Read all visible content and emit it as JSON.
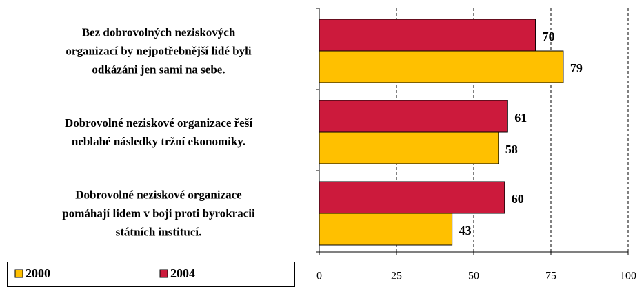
{
  "chart_data": {
    "type": "bar",
    "orientation": "horizontal",
    "categories": [
      "Bez dobrovolných neziskových\norganizací by nejpotřebnější lidé byli\nodkázáni jen sami na sebe.",
      "Dobrovolné neziskové organizace řeší\nneblahé následky tržní ekonomiky.",
      "Dobrovolné neziskové organizace\npomáhají lidem v boji proti byrokracii\nstátních institucí."
    ],
    "series": [
      {
        "name": "2004",
        "color": "#cc1a3c",
        "values": [
          70,
          61,
          60
        ]
      },
      {
        "name": "2000",
        "color": "#ffc000",
        "values": [
          79,
          58,
          43
        ]
      }
    ],
    "xlim": [
      0,
      100
    ],
    "xticks": [
      0,
      25,
      50,
      75,
      100
    ],
    "grid": true,
    "legend": "bottom-left"
  }
}
